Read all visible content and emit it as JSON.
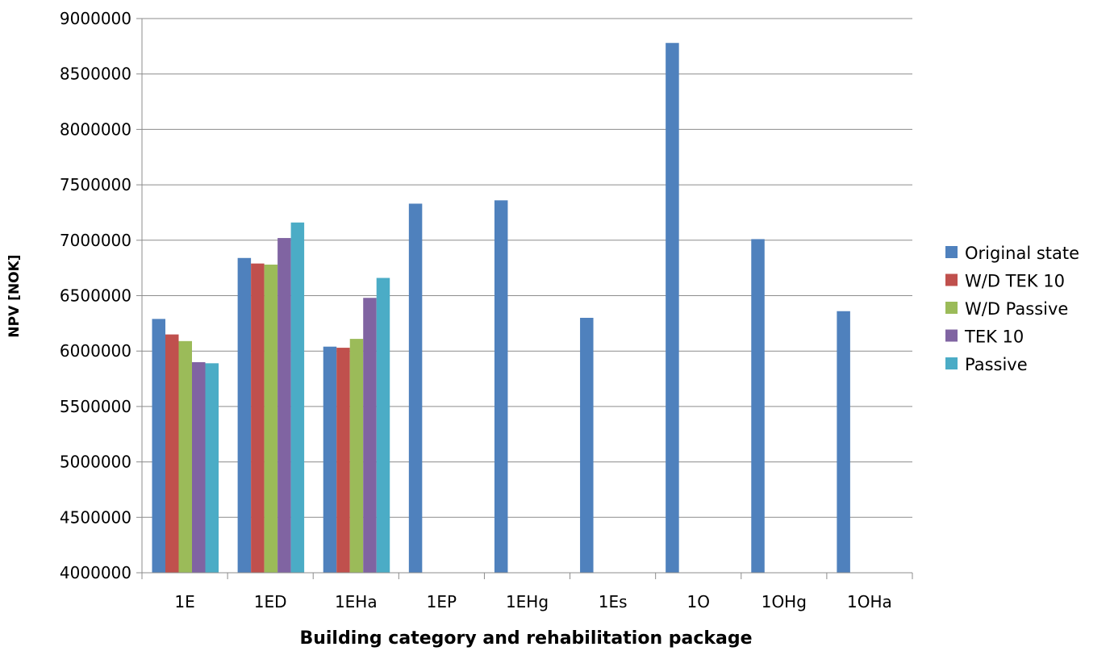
{
  "chart_data": {
    "type": "bar",
    "title": "",
    "xlabel": "Building category and rehabilitation package",
    "ylabel": "NPV [NOK]",
    "ylim": [
      4000000,
      9000000
    ],
    "y_ticks": [
      "4000000",
      "4500000",
      "5000000",
      "5500000",
      "6000000",
      "6500000",
      "7000000",
      "7500000",
      "8000000",
      "8500000",
      "9000000"
    ],
    "grid": true,
    "legend_position": "right",
    "categories": [
      "1E",
      "1ED",
      "1EHa",
      "1EP",
      "1EHg",
      "1Es",
      "1O",
      "1OHg",
      "1OHa"
    ],
    "series": [
      {
        "name": "Original state",
        "color": "#4F81BD",
        "values": [
          6290000,
          6840000,
          6040000,
          7330000,
          7360000,
          6300000,
          8780000,
          7010000,
          6360000
        ]
      },
      {
        "name": "W/D TEK 10",
        "color": "#C0504D",
        "values": [
          6150000,
          6790000,
          6030000,
          null,
          null,
          null,
          null,
          null,
          null
        ]
      },
      {
        "name": "W/D Passive",
        "color": "#9BBB59",
        "values": [
          6090000,
          6780000,
          6110000,
          null,
          null,
          null,
          null,
          null,
          null
        ]
      },
      {
        "name": "TEK 10",
        "color": "#8064A2",
        "values": [
          5900000,
          7020000,
          6480000,
          null,
          null,
          null,
          null,
          null,
          null
        ]
      },
      {
        "name": "Passive",
        "color": "#4BACC6",
        "values": [
          5890000,
          7160000,
          6660000,
          null,
          null,
          null,
          null,
          null,
          null
        ]
      }
    ]
  }
}
